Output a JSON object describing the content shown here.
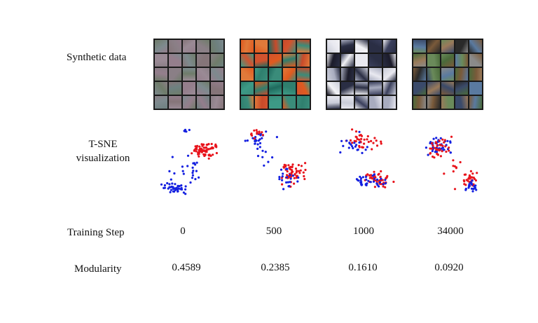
{
  "rows": {
    "synthetic_label": "Synthetic data",
    "tsne_label_line1": "T-SNE",
    "tsne_label_line2": "visualization",
    "training_step_label": "Training Step",
    "modularity_label": "Modularity"
  },
  "columns": [
    {
      "step": "0",
      "modularity": "0.4589"
    },
    {
      "step": "500",
      "modularity": "0.2385"
    },
    {
      "step": "1000",
      "modularity": "0.1610"
    },
    {
      "step": "34000",
      "modularity": "0.0920"
    }
  ],
  "colors": {
    "class_a": "#e8141c",
    "class_b": "#1420e0"
  }
}
